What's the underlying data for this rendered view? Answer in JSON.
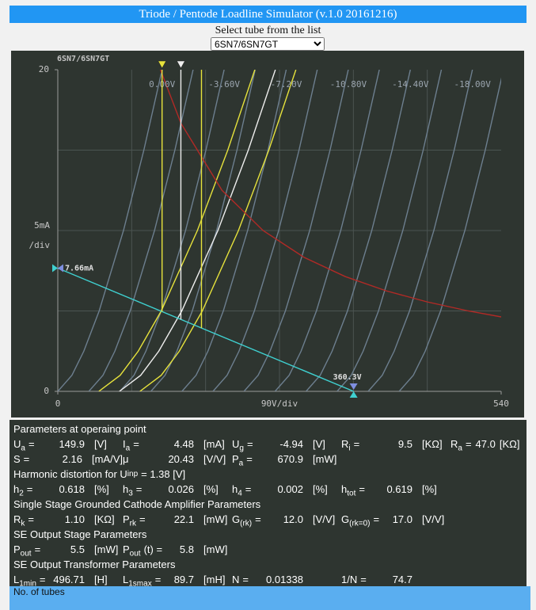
{
  "header": {
    "title": "Triode / Pentode Loadline Simulator (v.1.0 20161216)"
  },
  "selector": {
    "label": "Select tube from the list",
    "selected": "6SN7/6SN7GT"
  },
  "chart_data": {
    "type": "line",
    "title": "6SN7/6SN7GT",
    "xlim": [
      0,
      540
    ],
    "ylim": [
      0,
      20
    ],
    "xticks": [
      0,
      540
    ],
    "yticks": [
      0,
      20
    ],
    "x_label": "90V/div",
    "y_label": [
      "5mA",
      "/div"
    ],
    "xgrid": [
      90,
      180,
      270,
      360,
      450
    ],
    "ygrid": [
      5,
      10,
      15
    ],
    "grid_color": "#4b5451",
    "series": [
      {
        "color": "#6d7f8f",
        "label": "0.00V",
        "x": [
          0,
          17.2,
          31.7,
          50.4,
          80,
          104.8,
          127
        ],
        "values": [
          0,
          1,
          2.5,
          5,
          10,
          15,
          20
        ]
      },
      {
        "color": "#6d7f8f",
        "x": [
          37.8,
          55,
          69.5,
          88.2,
          117.8,
          142.6,
          164.8
        ],
        "values": [
          0,
          1,
          2.5,
          5,
          10,
          15,
          20
        ]
      },
      {
        "color": "#6d7f8f",
        "label": "-3.60V",
        "x": [
          75.6,
          92.8,
          107.3,
          126,
          155.6,
          180.4,
          202.6
        ],
        "values": [
          0,
          1,
          2.5,
          5,
          10,
          15,
          20
        ]
      },
      {
        "color": "#6d7f8f",
        "x": [
          113.4,
          130.6,
          145.1,
          163.8,
          193.4,
          218.2,
          240.4
        ],
        "values": [
          0,
          1,
          2.5,
          5,
          10,
          15,
          20
        ]
      },
      {
        "color": "#6d7f8f",
        "label": "-7.20V",
        "x": [
          151.2,
          168.4,
          182.9,
          201.6,
          231.2,
          256,
          278.2
        ],
        "values": [
          0,
          1,
          2.5,
          5,
          10,
          15,
          20
        ]
      },
      {
        "color": "#6d7f8f",
        "x": [
          189,
          206.2,
          220.7,
          239.4,
          269,
          293.8,
          316
        ],
        "values": [
          0,
          1,
          2.5,
          5,
          10,
          15,
          20
        ]
      },
      {
        "color": "#6d7f8f",
        "label": "-10.80V",
        "x": [
          226.8,
          244,
          258.5,
          277.2,
          306.8,
          331.6,
          353.8
        ],
        "values": [
          0,
          1,
          2.5,
          5,
          10,
          15,
          20
        ]
      },
      {
        "color": "#6d7f8f",
        "x": [
          264.6,
          281.8,
          296.3,
          315,
          344.6,
          369.4,
          391.6
        ],
        "values": [
          0,
          1,
          2.5,
          5,
          10,
          15,
          20
        ]
      },
      {
        "color": "#6d7f8f",
        "label": "-14.40V",
        "x": [
          302.4,
          319.6,
          334.1,
          352.8,
          382.4,
          407.2,
          429.4
        ],
        "values": [
          0,
          1,
          2.5,
          5,
          10,
          15,
          20
        ]
      },
      {
        "color": "#6d7f8f",
        "x": [
          340.2,
          357.4,
          371.9,
          390.6,
          420.2,
          445,
          467.2
        ],
        "values": [
          0,
          1,
          2.5,
          5,
          10,
          15,
          20
        ]
      },
      {
        "color": "#6d7f8f",
        "label": "-18.00V",
        "x": [
          378,
          395.2,
          409.7,
          428.4,
          458,
          482.8,
          505
        ],
        "values": [
          0,
          1,
          2.5,
          5,
          10,
          15,
          20
        ]
      },
      {
        "color": "#6d7f8f",
        "x": [
          415.8,
          433,
          447.5,
          466.2,
          495.8,
          520.6,
          542.8
        ],
        "values": [
          0,
          1,
          2.5,
          5,
          10,
          15,
          20
        ]
      },
      {
        "color": "#e6e23c",
        "x": [
          50,
          76,
          98,
          126,
          170,
          207,
          240
        ],
        "values": [
          0,
          1,
          2.5,
          5,
          10,
          15,
          20
        ]
      },
      {
        "color": "#eeeeee",
        "x": [
          75,
          101,
          123,
          151,
          195,
          232,
          265
        ],
        "values": [
          0,
          1,
          2.5,
          5,
          10,
          15,
          20
        ]
      },
      {
        "color": "#e6e23c",
        "x": [
          100,
          126,
          148,
          176,
          220,
          257,
          290
        ],
        "values": [
          0,
          1,
          2.5,
          5,
          10,
          15,
          20
        ]
      },
      {
        "color": "#b12a26",
        "x": [
          125,
          150,
          200,
          250,
          300,
          350,
          400,
          450,
          500,
          540
        ],
        "values": [
          20,
          16.67,
          12.5,
          10,
          8.33,
          7.14,
          6.25,
          5.56,
          5,
          4.63
        ]
      }
    ],
    "load_line": {
      "color": "#3fd0d0",
      "ia0": 7.66,
      "ia0_label": "7.66mA",
      "ua0": 360.3,
      "ua0_label": "360.3V"
    },
    "markers": [
      {
        "x": 127,
        "color": "#e6e23c",
        "triangle": true
      },
      {
        "x": 149.9,
        "color": "#eeeeee",
        "triangle": true
      },
      {
        "x": 175,
        "color": "#e6e23c",
        "triangle": false
      }
    ]
  },
  "parameters": {
    "sections": [
      {
        "title": "Parameters at operaing point",
        "rows": [
          [
            {
              "sym": "U",
              "sub": "a",
              "after": "=",
              "value": "149.9",
              "unit": "[V]"
            },
            {
              "sym": "I",
              "sub": "a",
              "after": "=",
              "value": "4.48",
              "unit": "[mA]"
            },
            {
              "sym": "U",
              "sub": "g",
              "after": "=",
              "value": "-4.94",
              "unit": "[V]"
            },
            {
              "sym": "R",
              "sub": "i",
              "after": "=",
              "value": "9.5",
              "unit": "[KΩ]"
            },
            {
              "sym": "R",
              "sub": "a",
              "after": "=",
              "value": "47.0",
              "unit": "[KΩ]"
            }
          ],
          [
            {
              "sym": "S",
              "after": "=",
              "value": "2.16",
              "unit": "[mA/V]"
            },
            {
              "sym": "μ",
              "value": "20.43",
              "unit": "[V/V]"
            },
            {
              "sym": "P",
              "sub": "a",
              "after": "=",
              "value": "670.9",
              "unit": "[mW]"
            }
          ]
        ]
      },
      {
        "title": {
          "text": "Harmonic distortion for U",
          "sub": "inp",
          "after": "= 1.38 [V]"
        },
        "rows": [
          [
            {
              "sym": "h",
              "sub": "2",
              "after": "=",
              "value": "0.618",
              "unit": "[%]"
            },
            {
              "sym": "h",
              "sub": "3",
              "after": "=",
              "value": "0.026",
              "unit": "[%]"
            },
            {
              "sym": "h",
              "sub": "4",
              "after": "=",
              "value": "0.002",
              "unit": "[%]"
            },
            {
              "sym": "h",
              "sub": "tot",
              "after": "=",
              "value": "0.619",
              "unit": "[%]"
            }
          ]
        ]
      },
      {
        "title": "Single Stage Grounded Cathode Amplifier Parameters",
        "rows": [
          [
            {
              "sym": "R",
              "sub": "k",
              "after": "=",
              "value": "1.10",
              "unit": "[KΩ]"
            },
            {
              "sym": "P",
              "sub": "rk",
              "after": "=",
              "value": "22.1",
              "unit": "[mW]"
            },
            {
              "sym": "G",
              "sub": "(rk)",
              "after": "=",
              "value": "12.0",
              "unit": "[V/V]"
            },
            {
              "sym": "G",
              "sub": "(rk=0)",
              "after": "=",
              "value": "17.0",
              "unit": "[V/V]"
            }
          ]
        ]
      },
      {
        "title": "SE Output Stage Parameters",
        "rows": [
          [
            {
              "sym": "P",
              "sub": "out",
              "after": "=",
              "value": "5.5",
              "unit": "[mW]"
            },
            {
              "sym": "P",
              "sub": "out",
              "after": "(t) =",
              "value": "5.8",
              "unit": "[mW]"
            }
          ]
        ]
      },
      {
        "title": "SE Output Transformer Parameters",
        "rows": [
          [
            {
              "sym": "L",
              "sub": "1min",
              "after": "=",
              "value": "496.71",
              "unit": "[H]"
            },
            {
              "sym": "L",
              "sub": "1smax",
              "after": "=",
              "value": "89.7",
              "unit": "[mH]"
            },
            {
              "sym": "N",
              "after": "=",
              "value": "0.01338"
            },
            {
              "sym": "1/N",
              "after": "=",
              "value": "74.7"
            }
          ]
        ]
      }
    ]
  },
  "footer": {
    "text": "No. of tubes"
  }
}
